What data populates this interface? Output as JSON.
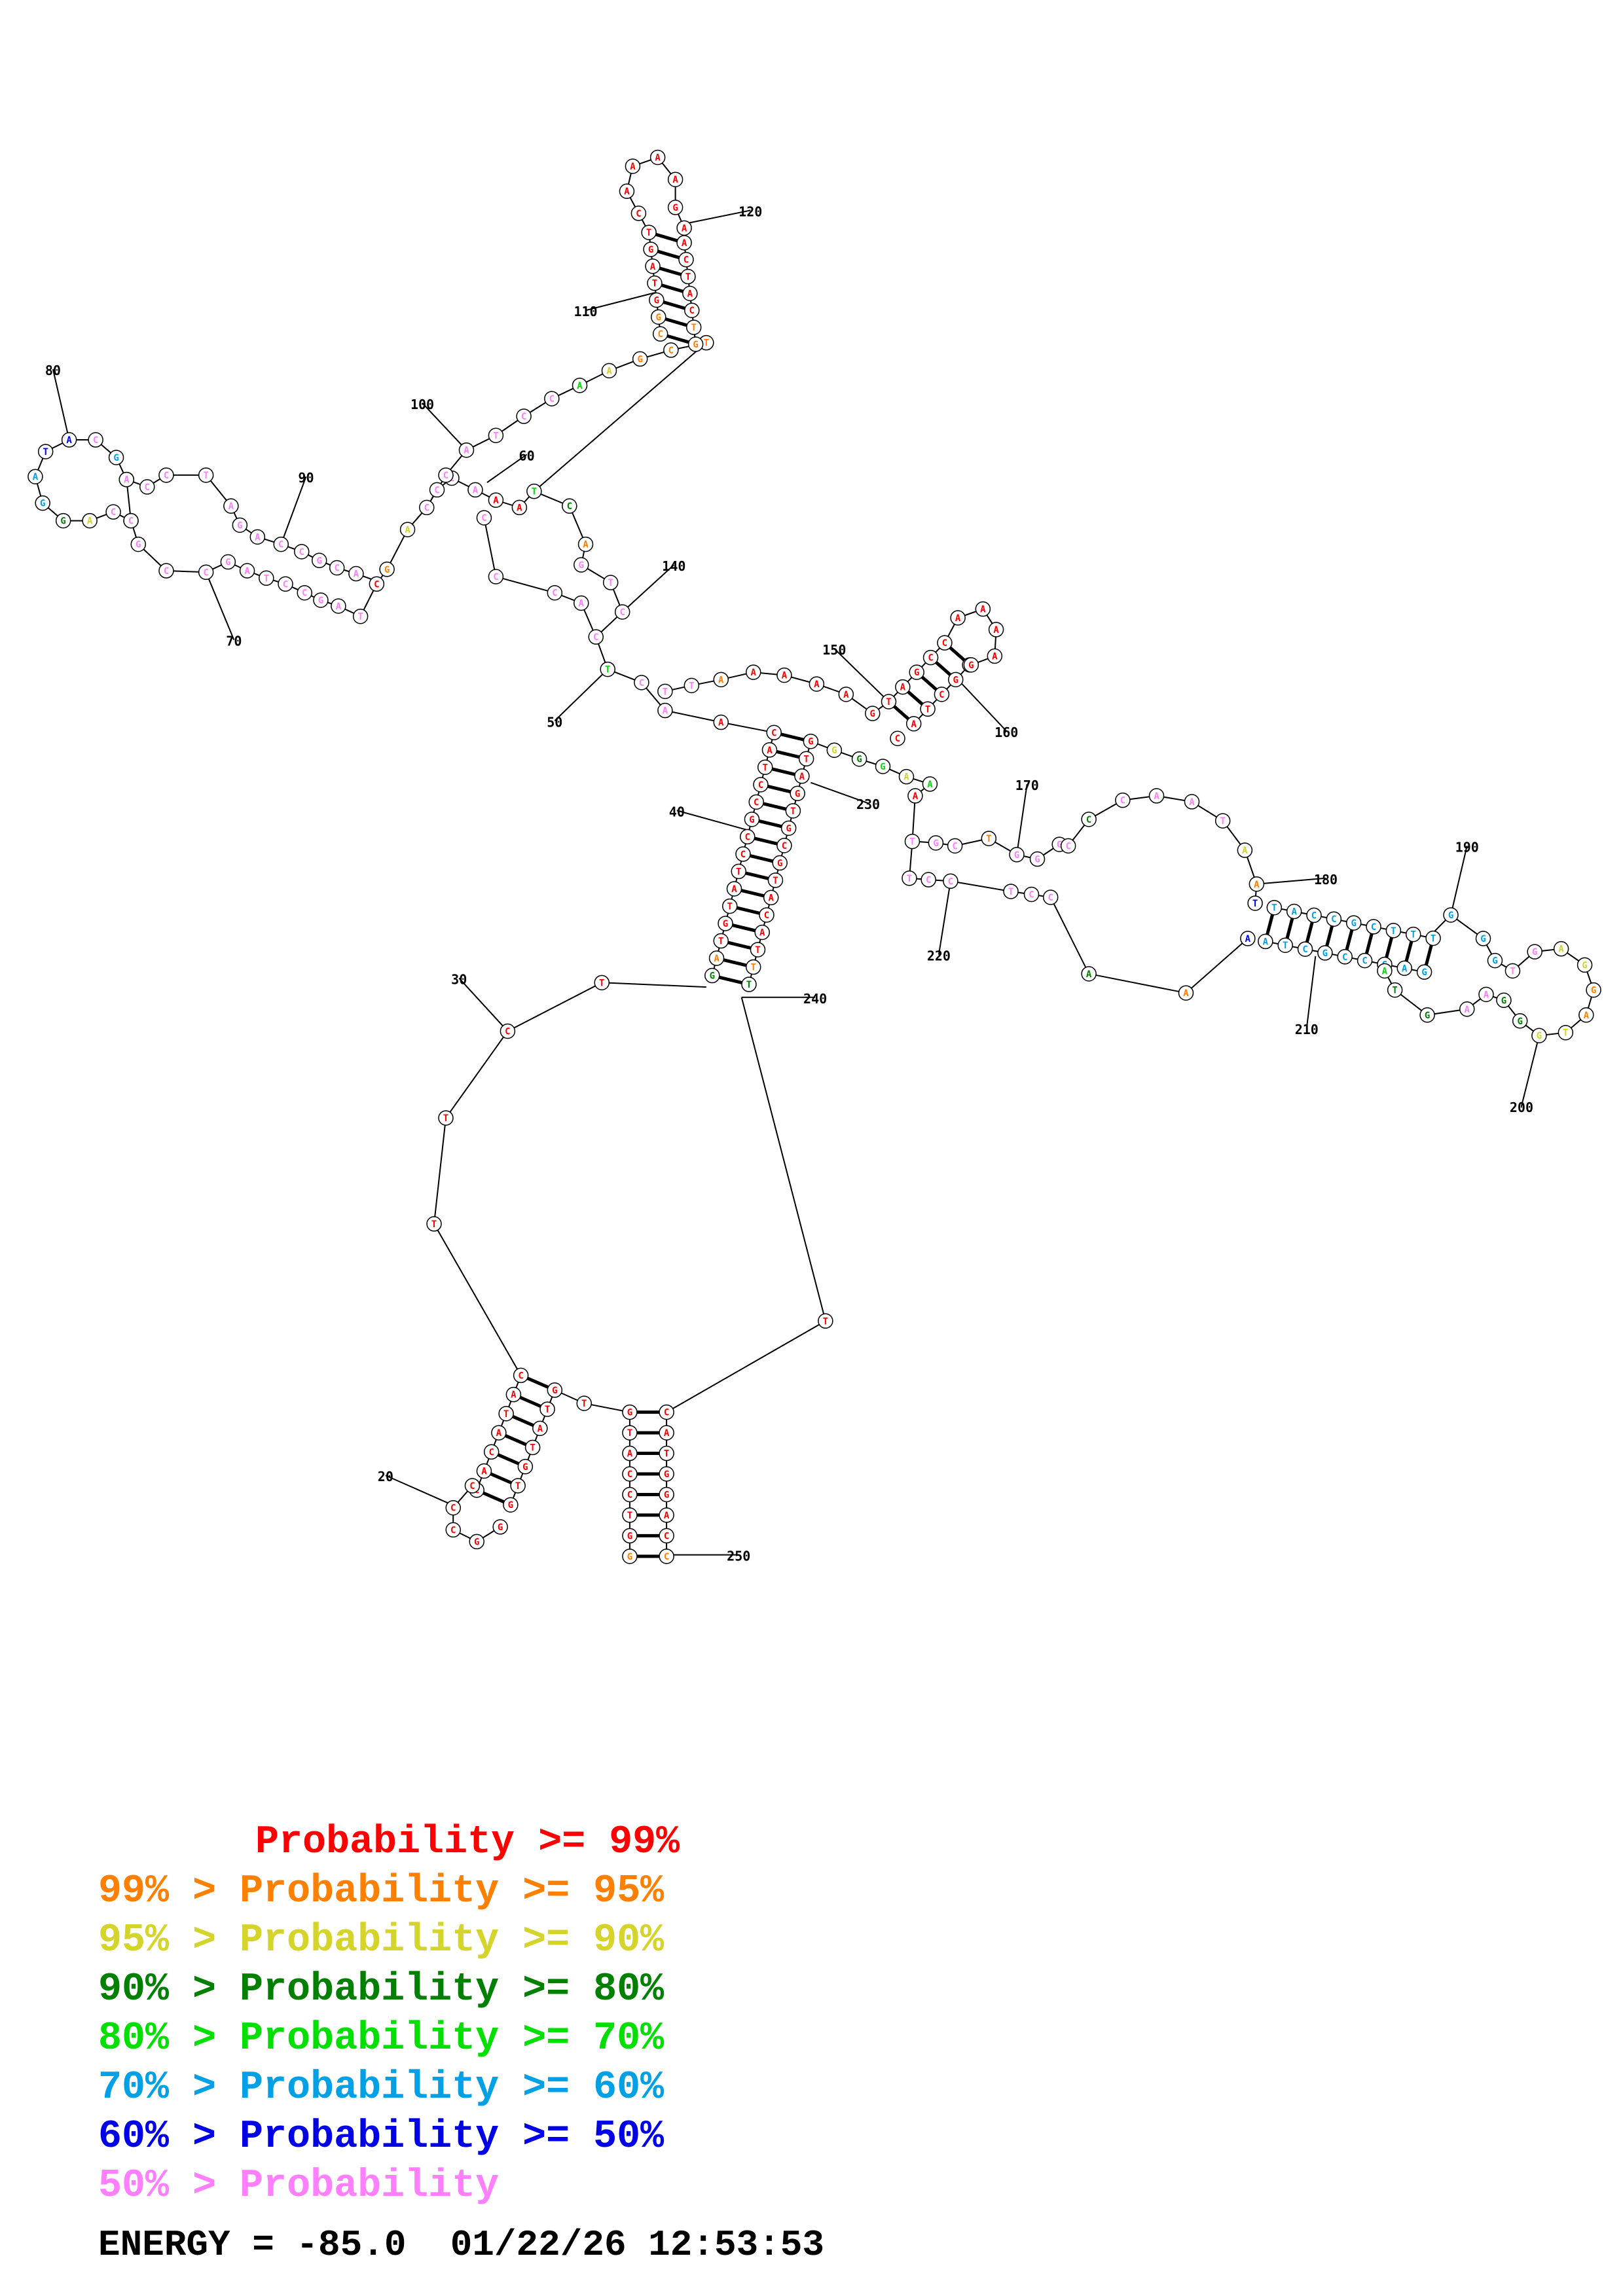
{
  "colors": {
    "p99": "#ff0000",
    "p95": "#ff8000",
    "p90": "#d4d42a",
    "p80": "#008000",
    "p70": "#00e000",
    "p60": "#00a0e6",
    "p50": "#0000e6",
    "plow": "#ff7fff"
  },
  "legend": [
    {
      "prefix": "",
      "text": "Probability >= 99%",
      "color_key": "p99"
    },
    {
      "prefix": "99% > ",
      "text": "Probability >= 95%",
      "color_key": "p95"
    },
    {
      "prefix": "95% > ",
      "text": "Probability >= 90%",
      "color_key": "p90"
    },
    {
      "prefix": "90% > ",
      "text": "Probability >= 80%",
      "color_key": "p80"
    },
    {
      "prefix": "80% > ",
      "text": "Probability >= 70%",
      "color_key": "p70"
    },
    {
      "prefix": "70% > ",
      "text": "Probability >= 60%",
      "color_key": "p60"
    },
    {
      "prefix": "60% > ",
      "text": "Probability >= 50%",
      "color_key": "p50"
    },
    {
      "prefix": "50% > ",
      "text": "Probability",
      "color_key": "plow"
    }
  ],
  "footer": {
    "energy": "ENERGY = -85.0",
    "timestamp": "01/22/26 12:53:53"
  },
  "position_labels": [
    "20",
    "30",
    "40",
    "50",
    "60",
    "70",
    "80",
    "90",
    "100",
    "110",
    "120",
    "140",
    "150",
    "160",
    "170",
    "180",
    "190",
    "200",
    "210",
    "220",
    "230",
    "240",
    "250"
  ],
  "structure": {
    "stems": [
      {
        "name": "stem-20-30",
        "pairs_left": [
          "C",
          "A",
          "T",
          "A",
          "C",
          "A",
          "C"
        ],
        "pairs_right": [
          "G",
          "T",
          "A",
          "T",
          "G",
          "T",
          "G"
        ]
      },
      {
        "name": "stem-terminal-250",
        "pairs_left": [
          "G",
          "T",
          "A",
          "C",
          "C",
          "T",
          "G",
          "G"
        ],
        "pairs_right": [
          "C",
          "A",
          "T",
          "G",
          "G",
          "A",
          "C",
          "C"
        ]
      },
      {
        "name": "stem-40-230",
        "pairs_left": [
          "C",
          "A",
          "T",
          "C",
          "C",
          "G",
          "C",
          "C",
          "T",
          "A",
          "T",
          "G",
          "T",
          "A",
          "G"
        ],
        "pairs_right": [
          "G",
          "T",
          "A",
          "G",
          "T",
          "G",
          "C",
          "G",
          "T",
          "A",
          "C",
          "A",
          "T",
          "T",
          "T"
        ]
      },
      {
        "name": "stem-110-120",
        "pairs_left": [
          "T",
          "G",
          "A",
          "T",
          "G",
          "G",
          "C"
        ],
        "pairs_right": [
          "A",
          "C",
          "T",
          "A",
          "C",
          "T",
          "G"
        ]
      },
      {
        "name": "stem-150-160",
        "pairs_left": [
          "T",
          "A",
          "G",
          "C",
          "C"
        ],
        "pairs_right": [
          "A",
          "T",
          "C",
          "G",
          "G"
        ]
      },
      {
        "name": "stem-180-210",
        "pairs_left": [
          "T",
          "A",
          "C",
          "C",
          "G",
          "C",
          "T",
          "T",
          "T"
        ],
        "pairs_right": [
          "A",
          "T",
          "C",
          "G",
          "C",
          "C",
          "G",
          "A",
          "G"
        ]
      }
    ]
  }
}
